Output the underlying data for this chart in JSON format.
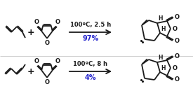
{
  "bg_color": "#ffffff",
  "line_color": "#1a1a1a",
  "arrow_color": "#1a1a1a",
  "yield_color": "#2222cc",
  "reaction1_conditions": "100ºC, 2.5 h",
  "reaction1_yield": "97%",
  "reaction2_conditions": "100ºC, 8 h",
  "reaction2_yield": "4%",
  "lw": 1.3,
  "fig_width": 2.75,
  "fig_height": 1.6,
  "dpi": 100
}
